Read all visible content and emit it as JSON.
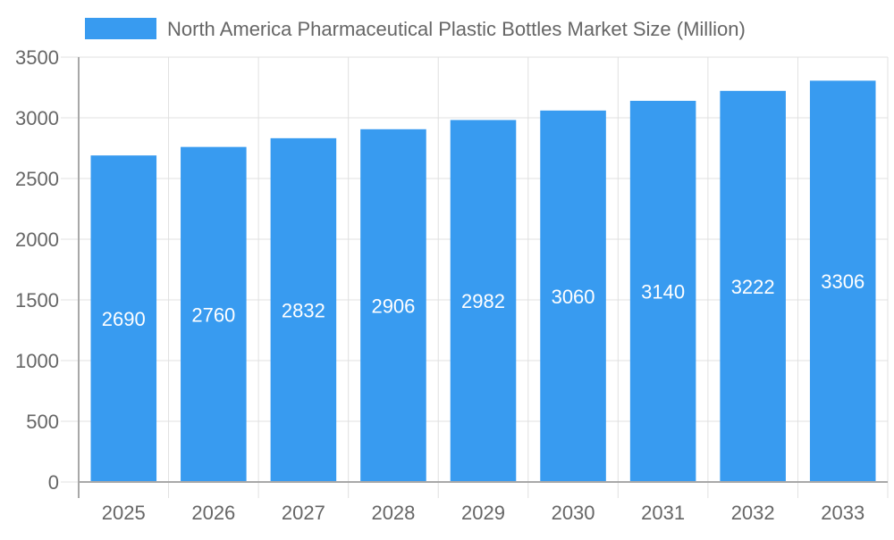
{
  "chart_data": {
    "type": "bar",
    "title": "",
    "xlabel": "",
    "ylabel": "",
    "categories": [
      "2025",
      "2026",
      "2027",
      "2028",
      "2029",
      "2030",
      "2031",
      "2032",
      "2033"
    ],
    "series": [
      {
        "name": "North America Pharmaceutical Plastic Bottles Market Size (Million)",
        "values": [
          2690,
          2760,
          2832,
          2906,
          2982,
          3060,
          3140,
          3222,
          3306
        ]
      }
    ],
    "ylim": [
      0,
      3500
    ],
    "yticks": [
      0,
      500,
      1000,
      1500,
      2000,
      2500,
      3000,
      3500
    ],
    "grid": true,
    "legend_position": "top",
    "data_labels": "inside-center",
    "colors": {
      "bar": "#389bf0",
      "grid": "#e0e0e0",
      "axis": "#a8a8a8",
      "text": "#666666",
      "label": "#ffffff"
    }
  }
}
